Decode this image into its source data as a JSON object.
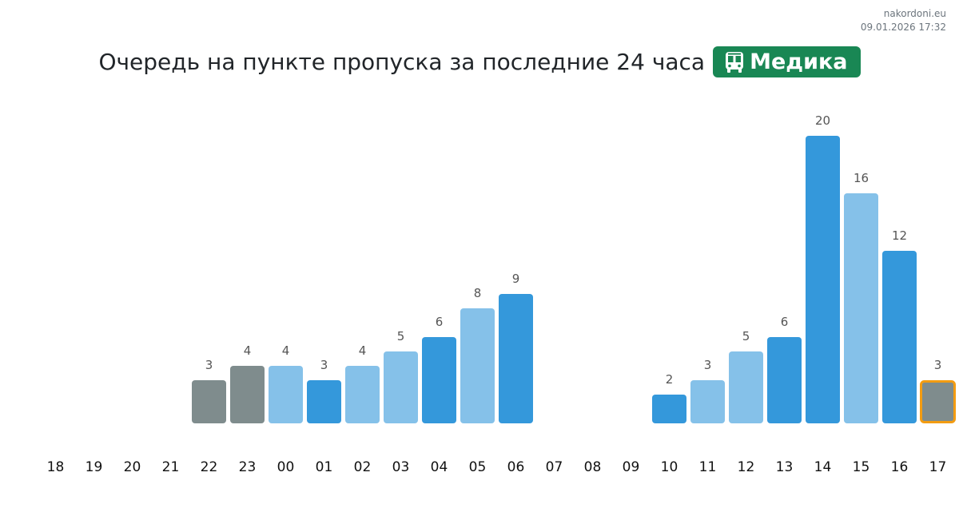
{
  "site": {
    "name": "nakordoni.eu",
    "datetime": "09.01.2026 17:32"
  },
  "title": "Очередь на пункте пропуска за последние 24 часа",
  "badge": {
    "label": "Медика",
    "icon": "bus-icon",
    "color": "#198754"
  },
  "chart_data": {
    "type": "bar",
    "title": "Очередь на пункте пропуска за последние 24 часа",
    "categories": [
      "18",
      "19",
      "20",
      "21",
      "22",
      "23",
      "00",
      "01",
      "02",
      "03",
      "04",
      "05",
      "06",
      "07",
      "08",
      "09",
      "10",
      "11",
      "12",
      "13",
      "14",
      "15",
      "16",
      "17"
    ],
    "values": [
      null,
      null,
      null,
      null,
      3,
      4,
      4,
      3,
      4,
      5,
      6,
      8,
      9,
      null,
      null,
      null,
      2,
      3,
      5,
      6,
      20,
      16,
      12,
      3
    ],
    "styles": [
      "",
      "",
      "",
      "",
      "gray",
      "gray",
      "light",
      "dark",
      "light",
      "light",
      "dark",
      "light",
      "dark",
      "",
      "",
      "",
      "dark",
      "light",
      "light",
      "dark",
      "dark",
      "light",
      "dark",
      "current"
    ],
    "colors": {
      "gray": "#7f8c8d",
      "light": "#85c1e9",
      "dark": "#3498db",
      "current": "#7f8c8d",
      "current_border": "#f39c12",
      "label": "#555555"
    },
    "ylim": [
      0,
      20
    ],
    "grid": false
  }
}
